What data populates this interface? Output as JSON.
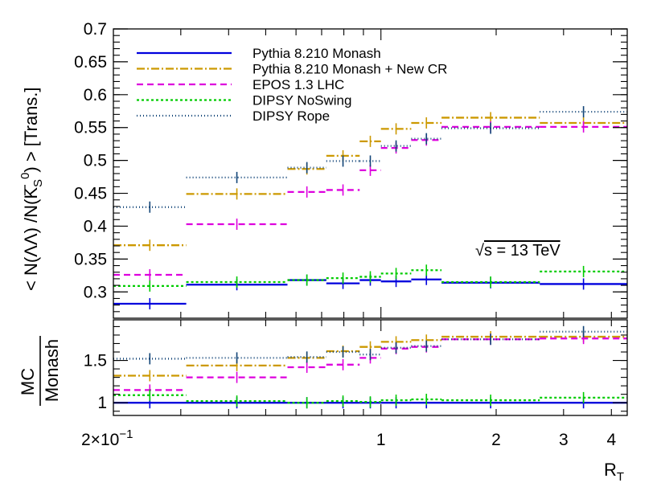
{
  "chart_data": [
    {
      "type": "line",
      "title": "",
      "xlabel": "R_T",
      "ylabel": "< N(ΛΛ̅)/N(K⁰S) > [Trans.]",
      "ylabel_text": "< N(ΛΛ) /N(K",
      "ylabel_sup": "0",
      "ylabel_sub": "S",
      "ylabel_tail": ") > [Trans.]",
      "xscale": "log",
      "xlim": [
        0.2,
        4.4
      ],
      "ylim": [
        0.26,
        0.7
      ],
      "yticks": [
        "0.3",
        "0.35",
        "0.4",
        "0.45",
        "0.5",
        "0.55",
        "0.6",
        "0.65",
        "0.7"
      ],
      "ytick_values": [
        0.3,
        0.35,
        0.4,
        0.45,
        0.5,
        0.55,
        0.6,
        0.65,
        0.7
      ],
      "annotation": "√s = 13 TeV",
      "annotation_root": "√",
      "annotation_text": "s = 13 TeV",
      "legend_position": "top-left",
      "bin_edges": [
        0.2,
        0.31,
        0.57,
        0.72,
        0.88,
        1.0,
        1.2,
        1.44,
        2.6,
        4.4
      ],
      "series": [
        {
          "name": "Pythia 8.210 Monash",
          "color": "#0000dd",
          "dash": "",
          "values": [
            0.282,
            0.311,
            0.318,
            0.313,
            0.318,
            0.316,
            0.319,
            0.314,
            0.312
          ]
        },
        {
          "name": "Pythia 8.210 Monash + New CR",
          "color": "#cc9900",
          "dash": "10,3,2,3",
          "values": [
            0.371,
            0.449,
            0.487,
            0.507,
            0.529,
            0.548,
            0.557,
            0.565,
            0.557
          ]
        },
        {
          "name": "EPOS 1.3 LHC",
          "color": "#dd00dd",
          "dash": "8,5",
          "values": [
            0.326,
            0.403,
            0.452,
            0.455,
            0.485,
            0.519,
            0.531,
            0.551,
            0.551
          ]
        },
        {
          "name": "DIPSY NoSwing",
          "color": "#00cc00",
          "dash": "3,3",
          "values": [
            0.309,
            0.315,
            0.318,
            0.321,
            0.323,
            0.328,
            0.333,
            0.315,
            0.331
          ]
        },
        {
          "name": "DIPSY Rope",
          "color": "#114477",
          "dash": "1,3",
          "values": [
            0.429,
            0.474,
            0.489,
            0.499,
            0.499,
            0.522,
            0.533,
            0.549,
            0.574
          ]
        }
      ]
    },
    {
      "type": "line",
      "title": "",
      "xlabel": "R_T",
      "ylabel": "MC / Monash",
      "ylabel_num": "MC",
      "ylabel_den": "Monash",
      "xscale": "log",
      "xlim": [
        0.2,
        4.4
      ],
      "ylim": [
        0.85,
        1.98
      ],
      "yticks": [
        "1",
        "1.5"
      ],
      "ytick_values": [
        1.0,
        1.5
      ],
      "reference_line": 1.0,
      "xticks": [
        "2×10⁻¹",
        "1",
        "2",
        "3",
        "4"
      ],
      "xtick_values": [
        0.2,
        1,
        2,
        3,
        4
      ],
      "xtick_base": "2×10",
      "xtick_exp": "−1",
      "series": [
        {
          "name": "Pythia 8.210 Monash",
          "color": "#0000dd",
          "dash": "",
          "values": [
            1.0,
            1.0,
            1.0,
            1.0,
            1.0,
            1.0,
            1.0,
            1.0,
            1.0
          ]
        },
        {
          "name": "Pythia 8.210 Monash + New CR",
          "color": "#cc9900",
          "dash": "10,3,2,3",
          "values": [
            1.32,
            1.44,
            1.53,
            1.61,
            1.66,
            1.72,
            1.74,
            1.78,
            1.78
          ]
        },
        {
          "name": "EPOS 1.3 LHC",
          "color": "#dd00dd",
          "dash": "8,5",
          "values": [
            1.15,
            1.3,
            1.42,
            1.45,
            1.53,
            1.64,
            1.66,
            1.75,
            1.76
          ]
        },
        {
          "name": "DIPSY NoSwing",
          "color": "#00cc00",
          "dash": "3,3",
          "values": [
            1.09,
            1.02,
            1.0,
            1.02,
            1.01,
            1.03,
            1.04,
            1.03,
            1.06
          ]
        },
        {
          "name": "DIPSY Rope",
          "color": "#114477",
          "dash": "1,3",
          "values": [
            1.52,
            1.53,
            1.54,
            1.6,
            1.57,
            1.65,
            1.67,
            1.75,
            1.84
          ]
        }
      ]
    }
  ]
}
